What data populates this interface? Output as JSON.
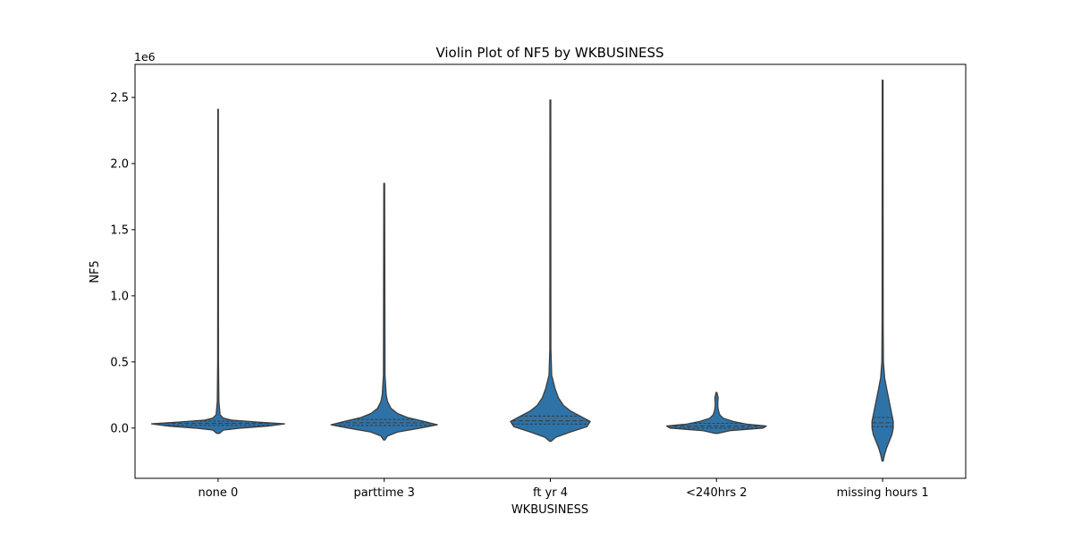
{
  "chart_data": {
    "type": "violin",
    "title": "Violin Plot of NF5 by WKBUSINESS",
    "xlabel": "WKBUSINESS",
    "ylabel": "NF5",
    "y_offset_label": "1e6",
    "y_scale": 1000000,
    "ylim": [
      -380000,
      2750000
    ],
    "y_ticks": [
      0,
      500000,
      1000000,
      1500000,
      2000000,
      2500000
    ],
    "y_tick_labels": [
      "0.0",
      "0.5",
      "1.0",
      "1.5",
      "2.0",
      "2.5"
    ],
    "categories": [
      "none 0",
      "parttime 3",
      "ft yr 4",
      "<240hrs 2",
      "missing hours 1"
    ],
    "fill_color": "#2e73a8",
    "edge_color": "#3d3d3d",
    "inner": "quartile",
    "violins": [
      {
        "category": "none 0",
        "min": -40000,
        "max": 2410000,
        "quartiles": [
          20000,
          35000,
          52000
        ],
        "profile": [
          [
            -40000,
            0.02
          ],
          [
            -15000,
            0.08
          ],
          [
            0,
            0.35
          ],
          [
            15000,
            0.75
          ],
          [
            32000,
            1.0
          ],
          [
            45000,
            0.6
          ],
          [
            60000,
            0.2
          ],
          [
            75000,
            0.08
          ],
          [
            100000,
            0.03
          ],
          [
            200000,
            0.012
          ],
          [
            500000,
            0.006
          ],
          [
            2410000,
            0.004
          ]
        ]
      },
      {
        "category": "parttime 3",
        "min": -90000,
        "max": 1850000,
        "quartiles": [
          20000,
          40000,
          65000
        ],
        "profile": [
          [
            -90000,
            0.01
          ],
          [
            -60000,
            0.05
          ],
          [
            -30000,
            0.2
          ],
          [
            0,
            0.55
          ],
          [
            25000,
            0.8
          ],
          [
            50000,
            0.6
          ],
          [
            80000,
            0.35
          ],
          [
            110000,
            0.2
          ],
          [
            150000,
            0.1
          ],
          [
            200000,
            0.05
          ],
          [
            250000,
            0.03
          ],
          [
            400000,
            0.012
          ],
          [
            1850000,
            0.006
          ]
        ]
      },
      {
        "category": "ft yr 4",
        "min": -100000,
        "max": 2480000,
        "quartiles": [
          30000,
          55000,
          90000
        ],
        "profile": [
          [
            -100000,
            0.01
          ],
          [
            -70000,
            0.08
          ],
          [
            -30000,
            0.3
          ],
          [
            10000,
            0.55
          ],
          [
            50000,
            0.6
          ],
          [
            90000,
            0.45
          ],
          [
            130000,
            0.3
          ],
          [
            170000,
            0.2
          ],
          [
            230000,
            0.12
          ],
          [
            300000,
            0.07
          ],
          [
            400000,
            0.02
          ],
          [
            600000,
            0.008
          ],
          [
            2480000,
            0.006
          ]
        ]
      },
      {
        "category": "<240hrs 2",
        "min": -40000,
        "max": 270000,
        "quartiles": [
          0,
          15000,
          35000
        ],
        "profile": [
          [
            -40000,
            0.02
          ],
          [
            -20000,
            0.2
          ],
          [
            0,
            0.7
          ],
          [
            15000,
            0.75
          ],
          [
            30000,
            0.45
          ],
          [
            50000,
            0.25
          ],
          [
            75000,
            0.1
          ],
          [
            100000,
            0.05
          ],
          [
            130000,
            0.03
          ],
          [
            160000,
            0.02
          ],
          [
            200000,
            0.02
          ],
          [
            230000,
            0.025
          ],
          [
            260000,
            0.01
          ],
          [
            270000,
            0.005
          ]
        ]
      },
      {
        "category": "missing hours 1",
        "min": -250000,
        "max": 2630000,
        "quartiles": [
          10000,
          40000,
          80000
        ],
        "profile": [
          [
            -250000,
            0.008
          ],
          [
            -200000,
            0.03
          ],
          [
            -150000,
            0.06
          ],
          [
            -100000,
            0.1
          ],
          [
            -50000,
            0.14
          ],
          [
            0,
            0.16
          ],
          [
            50000,
            0.16
          ],
          [
            100000,
            0.14
          ],
          [
            200000,
            0.1
          ],
          [
            300000,
            0.06
          ],
          [
            380000,
            0.03
          ],
          [
            500000,
            0.012
          ],
          [
            800000,
            0.008
          ],
          [
            2630000,
            0.006
          ]
        ]
      }
    ]
  }
}
